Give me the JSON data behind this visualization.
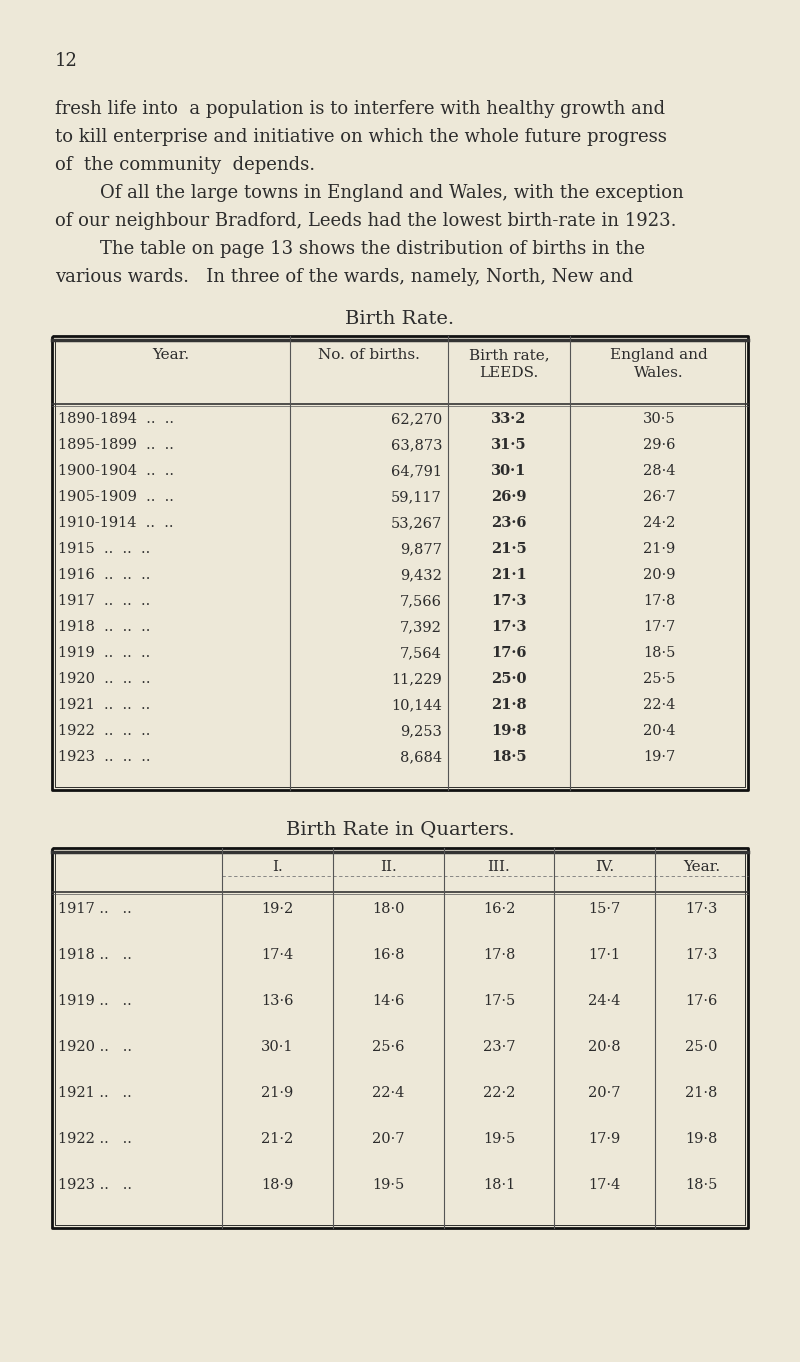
{
  "bg_color": "#ede8d8",
  "text_color": "#2c2c2c",
  "page_number": "12",
  "intro_lines": [
    [
      "fresh life into  a population is to interfere with healthy growth and",
      55
    ],
    [
      "to kill enterprise and initiative on which the whole future progress",
      55
    ],
    [
      "of  the community  depends.",
      55
    ],
    [
      "Of all the large towns in England and Wales, with the exception",
      100
    ],
    [
      "of our neighbour Bradford, Leeds had the lowest birth-rate in 1923.",
      55
    ],
    [
      "The table on page 13 shows the distribution of births in the",
      100
    ],
    [
      "various wards.   In three of the wards, namely, North, New and",
      55
    ]
  ],
  "t1_title": "Birth Rate.",
  "t1_col_headers": [
    "Year.",
    "No. of births.",
    "Birth rate,\nLEEDS.",
    "England and\nWales."
  ],
  "t1_rows": [
    [
      "1890-1894  ..  ..",
      "62,270",
      "33·2",
      "30·5"
    ],
    [
      "1895-1899  ..  ..",
      "63,873",
      "31·5",
      "29·6"
    ],
    [
      "1900-1904  ..  ..",
      "64,791",
      "30·1",
      "28·4"
    ],
    [
      "1905-1909  ..  ..",
      "59,117",
      "26·9",
      "26·7"
    ],
    [
      "1910-1914  ..  ..",
      "53,267",
      "23·6",
      "24·2"
    ],
    [
      "1915  ..  ..  ..",
      "9,877",
      "21·5",
      "21·9"
    ],
    [
      "1916  ..  ..  ..",
      "9,432",
      "21·1",
      "20·9"
    ],
    [
      "1917  ..  ..  ..",
      "7,566",
      "17·3",
      "17·8"
    ],
    [
      "1918  ..  ..  ..",
      "7,392",
      "17·3",
      "17·7"
    ],
    [
      "1919  ..  ..  ..",
      "7,564",
      "17·6",
      "18·5"
    ],
    [
      "1920  ..  ..  ..",
      "11,229",
      "25·0",
      "25·5"
    ],
    [
      "1921  ..  ..  ..",
      "10,144",
      "21·8",
      "22·4"
    ],
    [
      "1922  ..  ..  ..",
      "9,253",
      "19·8",
      "20·4"
    ],
    [
      "1923  ..  ..  ..",
      "8,684",
      "18·5",
      "19·7"
    ]
  ],
  "t2_title": "Birth Rate in Quarters.",
  "t2_col_headers": [
    "",
    "I.",
    "II.",
    "III.",
    "IV.",
    "Year."
  ],
  "t2_rows": [
    [
      "1917 ..   ..",
      "19·2",
      "18·0",
      "16·2",
      "15·7",
      "17·3"
    ],
    [
      "1918 ..   ..",
      "17·4",
      "16·8",
      "17·8",
      "17·1",
      "17·3"
    ],
    [
      "1919 ..   ..",
      "13·6",
      "14·6",
      "17·5",
      "24·4",
      "17·6"
    ],
    [
      "1920 ..   ..",
      "30·1",
      "25·6",
      "23·7",
      "20·8",
      "25·0"
    ],
    [
      "1921 ..   ..",
      "21·9",
      "22·4",
      "22·2",
      "20·7",
      "21·8"
    ],
    [
      "1922 ..   ..",
      "21·2",
      "20·7",
      "19·5",
      "17·9",
      "19·8"
    ],
    [
      "1923 ..   ..",
      "18·9",
      "19·5",
      "18·1",
      "17·4",
      "18·5"
    ]
  ]
}
